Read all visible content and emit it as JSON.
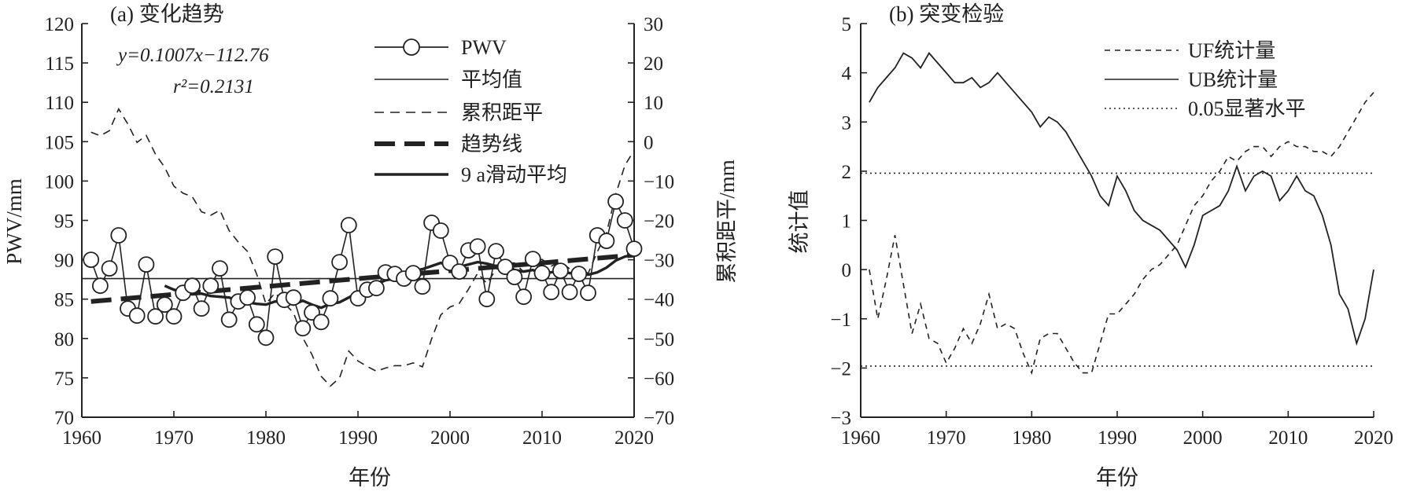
{
  "chart_data": [
    {
      "type": "line",
      "panel_title": "(a) 变化趋势",
      "xlabel": "年份",
      "ylabel_left": "PWV/mm",
      "ylabel_right": "累积距平/mm",
      "xlim": [
        1960,
        2020
      ],
      "ylim_left": [
        70,
        120
      ],
      "ylim_right": [
        -70,
        30
      ],
      "x_ticks": [
        1960,
        1970,
        1980,
        1990,
        2000,
        2010,
        2020
      ],
      "y_ticks_left": [
        70,
        75,
        80,
        85,
        90,
        95,
        100,
        105,
        110,
        115,
        120
      ],
      "y_ticks_right": [
        -70,
        -60,
        -50,
        -40,
        -30,
        -20,
        -10,
        0,
        10,
        20,
        30
      ],
      "annotation": {
        "equation": "y=0.1007x−112.76",
        "r2": "r²=0.2131"
      },
      "legend": [
        "PWV",
        "平均值",
        "累积距平",
        "趋势线",
        "9 a滑动平均"
      ],
      "series": [
        {
          "name": "PWV",
          "axis": "left",
          "x": [
            1961,
            1962,
            1963,
            1964,
            1965,
            1966,
            1967,
            1968,
            1969,
            1970,
            1971,
            1972,
            1973,
            1974,
            1975,
            1976,
            1977,
            1978,
            1979,
            1980,
            1981,
            1982,
            1983,
            1984,
            1985,
            1986,
            1987,
            1988,
            1989,
            1990,
            1991,
            1992,
            1993,
            1994,
            1995,
            1996,
            1997,
            1998,
            1999,
            2000,
            2001,
            2002,
            2003,
            2004,
            2005,
            2006,
            2007,
            2008,
            2009,
            2010,
            2011,
            2012,
            2013,
            2014,
            2015,
            2016,
            2017,
            2018,
            2019,
            2020
          ],
          "values": [
            90.0,
            86.7,
            88.9,
            93.1,
            83.8,
            82.9,
            89.4,
            82.8,
            84.3,
            82.8,
            85.8,
            86.7,
            83.8,
            86.7,
            88.9,
            82.4,
            84.7,
            85.2,
            81.8,
            80.1,
            90.4,
            84.9,
            85.2,
            81.3,
            83.3,
            82.1,
            85.1,
            89.7,
            94.4,
            85.1,
            86.2,
            86.4,
            88.4,
            88.2,
            87.6,
            88.3,
            86.6,
            94.7,
            93.7,
            89.6,
            88.5,
            91.2,
            91.7,
            85.0,
            91.1,
            89.1,
            87.8,
            85.3,
            90.1,
            88.3,
            85.9,
            88.6,
            85.9,
            88.2,
            85.8,
            93.1,
            92.4,
            97.4,
            95.0,
            91.4
          ]
        },
        {
          "name": "平均值",
          "axis": "left",
          "x": [
            1960,
            2020
          ],
          "values": [
            87.6,
            87.6
          ]
        },
        {
          "name": "累积距平",
          "axis": "right",
          "x": [
            1961,
            1962,
            1963,
            1964,
            1965,
            1966,
            1967,
            1968,
            1969,
            1970,
            1971,
            1972,
            1973,
            1974,
            1975,
            1976,
            1977,
            1978,
            1979,
            1980,
            1981,
            1982,
            1983,
            1984,
            1985,
            1986,
            1987,
            1988,
            1989,
            1990,
            1991,
            1992,
            1993,
            1994,
            1995,
            1996,
            1997,
            1998,
            1999,
            2000,
            2001,
            2002,
            2003,
            2004,
            2005,
            2006,
            2007,
            2008,
            2009,
            2010,
            2011,
            2012,
            2013,
            2014,
            2015,
            2016,
            2017,
            2018,
            2019,
            2020
          ],
          "values": [
            2.4,
            1.5,
            2.8,
            8.3,
            4.5,
            -0.2,
            1.6,
            -3.2,
            -6.5,
            -11.3,
            -13.1,
            -14.0,
            -17.8,
            -18.7,
            -17.4,
            -22.6,
            -25.5,
            -27.9,
            -33.7,
            -41.2,
            -38.4,
            -41.1,
            -43.5,
            -49.8,
            -54.1,
            -59.6,
            -62.1,
            -60.0,
            -53.2,
            -55.7,
            -57.1,
            -58.3,
            -57.5,
            -56.9,
            -56.9,
            -56.2,
            -57.2,
            -50.1,
            -44.0,
            -42.0,
            -41.1,
            -37.5,
            -33.4,
            -36.0,
            -32.5,
            -31.0,
            -30.8,
            -33.1,
            -30.6,
            -29.9,
            -31.6,
            -30.6,
            -32.3,
            -31.7,
            -33.5,
            -28.0,
            -23.2,
            -13.4,
            -6.0,
            -2.2
          ]
        },
        {
          "name": "趋势线",
          "axis": "left",
          "x": [
            1961,
            2020
          ],
          "values": [
            84.7,
            90.6
          ]
        },
        {
          "name": "9 a滑动平均",
          "axis": "left",
          "x": [
            1969,
            1970,
            1971,
            1972,
            1973,
            1974,
            1975,
            1976,
            1977,
            1978,
            1979,
            1980,
            1981,
            1982,
            1983,
            1984,
            1985,
            1986,
            1987,
            1988,
            1989,
            1990,
            1991,
            1992,
            1993,
            1994,
            1995,
            1996,
            1997,
            1998,
            1999,
            2000,
            2001,
            2002,
            2003,
            2004,
            2005,
            2006,
            2007,
            2008,
            2009,
            2010,
            2011,
            2012,
            2013,
            2014,
            2015,
            2016,
            2017,
            2018,
            2019,
            2020
          ],
          "values": [
            86.7,
            86.2,
            85.9,
            85.6,
            85.7,
            85.4,
            85.3,
            85.2,
            84.8,
            84.6,
            84.4,
            84.3,
            84.7,
            84.6,
            84.3,
            84.8,
            84.3,
            83.9,
            84.4,
            84.6,
            85.2,
            85.9,
            86.4,
            86.9,
            87.4,
            87.6,
            88.1,
            88.6,
            88.8,
            89.2,
            89.6,
            89.2,
            89.1,
            89.4,
            89.7,
            89.5,
            89.2,
            89.4,
            88.7,
            88.5,
            88.7,
            88.2,
            88.4,
            88.6,
            88.3,
            88.4,
            88.1,
            88.4,
            89.0,
            89.9,
            90.4,
            90.7
          ]
        }
      ]
    },
    {
      "type": "line",
      "panel_title": "(b) 突变检验",
      "xlabel": "年份",
      "ylabel": "统计值",
      "xlim": [
        1960,
        2020
      ],
      "ylim": [
        -3,
        5
      ],
      "x_ticks": [
        1960,
        1970,
        1980,
        1990,
        2000,
        2010,
        2020
      ],
      "y_ticks": [
        -3,
        -2,
        -1,
        0,
        1,
        2,
        3,
        4,
        5
      ],
      "legend": [
        "UF统计量",
        "UB统计量",
        "0.05显著水平"
      ],
      "series": [
        {
          "name": "UF统计量",
          "style": "dashed",
          "x": [
            1961,
            1962,
            1963,
            1964,
            1965,
            1966,
            1967,
            1968,
            1969,
            1970,
            1971,
            1972,
            1973,
            1974,
            1975,
            1976,
            1977,
            1978,
            1979,
            1980,
            1981,
            1982,
            1983,
            1984,
            1985,
            1986,
            1987,
            1988,
            1989,
            1990,
            1991,
            1992,
            1993,
            1994,
            1995,
            1996,
            1997,
            1998,
            1999,
            2000,
            2001,
            2002,
            2003,
            2004,
            2005,
            2006,
            2007,
            2008,
            2009,
            2010,
            2011,
            2012,
            2013,
            2014,
            2015,
            2016,
            2017,
            2018,
            2019,
            2020
          ],
          "values": [
            0.0,
            -1.0,
            -0.2,
            0.7,
            -0.3,
            -1.3,
            -0.7,
            -1.4,
            -1.5,
            -1.9,
            -1.6,
            -1.2,
            -1.5,
            -1.1,
            -0.5,
            -1.2,
            -1.1,
            -1.2,
            -1.7,
            -2.1,
            -1.4,
            -1.3,
            -1.3,
            -1.6,
            -1.9,
            -2.1,
            -2.1,
            -1.5,
            -0.9,
            -0.9,
            -0.7,
            -0.5,
            -0.2,
            0.0,
            0.1,
            0.3,
            0.5,
            0.9,
            1.3,
            1.5,
            1.8,
            2.0,
            2.3,
            2.2,
            2.4,
            2.5,
            2.5,
            2.3,
            2.5,
            2.6,
            2.5,
            2.5,
            2.4,
            2.4,
            2.3,
            2.5,
            2.8,
            3.1,
            3.4,
            3.6
          ]
        },
        {
          "name": "UB统计量",
          "style": "solid",
          "x": [
            1961,
            1962,
            1963,
            1964,
            1965,
            1966,
            1967,
            1968,
            1969,
            1970,
            1971,
            1972,
            1973,
            1974,
            1975,
            1976,
            1977,
            1978,
            1979,
            1980,
            1981,
            1982,
            1983,
            1984,
            1985,
            1986,
            1987,
            1988,
            1989,
            1990,
            1991,
            1992,
            1993,
            1994,
            1995,
            1996,
            1997,
            1998,
            1999,
            2000,
            2001,
            2002,
            2003,
            2004,
            2005,
            2006,
            2007,
            2008,
            2009,
            2010,
            2011,
            2012,
            2013,
            2014,
            2015,
            2016,
            2017,
            2018,
            2019,
            2020
          ],
          "values": [
            3.4,
            3.7,
            3.9,
            4.1,
            4.4,
            4.3,
            4.1,
            4.4,
            4.2,
            4.0,
            3.8,
            3.8,
            3.9,
            3.7,
            3.8,
            4.0,
            3.8,
            3.6,
            3.4,
            3.2,
            2.9,
            3.1,
            3.0,
            2.8,
            2.5,
            2.2,
            1.9,
            1.5,
            1.3,
            1.9,
            1.6,
            1.2,
            1.0,
            0.9,
            0.8,
            0.6,
            0.4,
            0.05,
            0.5,
            1.1,
            1.2,
            1.3,
            1.6,
            2.1,
            1.6,
            1.9,
            2.0,
            1.9,
            1.4,
            1.6,
            1.9,
            1.6,
            1.5,
            1.1,
            0.5,
            -0.5,
            -0.8,
            -1.5,
            -1.0,
            0.0
          ]
        },
        {
          "name": "0.05显著水平",
          "style": "dotted",
          "x": [
            1960,
            2020
          ],
          "values": [
            1.96,
            1.96
          ],
          "mirror_values": [
            -1.96,
            -1.96
          ]
        }
      ]
    }
  ]
}
